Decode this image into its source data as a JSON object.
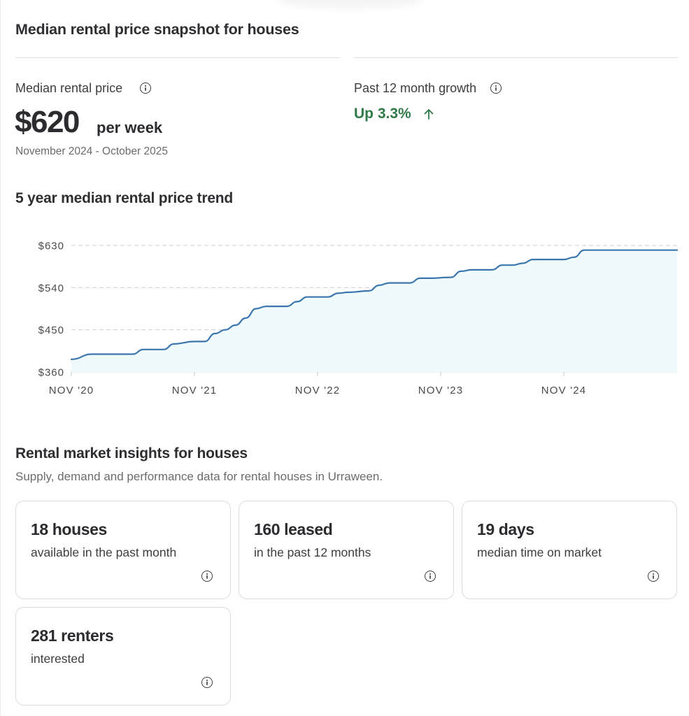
{
  "snapshot": {
    "title": "Median rental price snapshot for houses",
    "median_label": "Median rental price",
    "price": "$620",
    "price_unit": "per week",
    "period": "November 2024 - October 2025",
    "growth_label": "Past 12 month growth",
    "growth_value": "Up 3.3%",
    "growth_icon": "arrow-up-icon",
    "growth_color": "#2f7a48"
  },
  "trend": {
    "title": "5 year median rental price trend"
  },
  "chart_data": {
    "type": "area",
    "x_ticks": [
      "NOV '20",
      "NOV '21",
      "NOV '22",
      "NOV '23",
      "NOV '24"
    ],
    "y_ticks": [
      "$360",
      "$450",
      "$540",
      "$630"
    ],
    "ylim": [
      360,
      630
    ],
    "x_range": [
      "2020-11",
      "2025-10"
    ],
    "grid": "horizontal-dashed",
    "line_color": "#3b76ae",
    "fill_color": "#eefafb",
    "points": [
      {
        "x": "2020-11",
        "y": 387
      },
      {
        "x": "2021-01",
        "y": 398
      },
      {
        "x": "2021-02",
        "y": 398
      },
      {
        "x": "2021-05",
        "y": 398
      },
      {
        "x": "2021-06",
        "y": 408
      },
      {
        "x": "2021-08",
        "y": 408
      },
      {
        "x": "2021-09",
        "y": 420
      },
      {
        "x": "2021-11",
        "y": 425
      },
      {
        "x": "2021-12",
        "y": 425
      },
      {
        "x": "2022-01",
        "y": 442
      },
      {
        "x": "2022-02",
        "y": 450
      },
      {
        "x": "2022-03",
        "y": 460
      },
      {
        "x": "2022-04",
        "y": 475
      },
      {
        "x": "2022-05",
        "y": 495
      },
      {
        "x": "2022-06",
        "y": 500
      },
      {
        "x": "2022-08",
        "y": 500
      },
      {
        "x": "2022-09",
        "y": 510
      },
      {
        "x": "2022-10",
        "y": 520
      },
      {
        "x": "2022-12",
        "y": 520
      },
      {
        "x": "2023-01",
        "y": 528
      },
      {
        "x": "2023-02",
        "y": 530
      },
      {
        "x": "2023-04",
        "y": 533
      },
      {
        "x": "2023-05",
        "y": 545
      },
      {
        "x": "2023-06",
        "y": 550
      },
      {
        "x": "2023-08",
        "y": 550
      },
      {
        "x": "2023-09",
        "y": 560
      },
      {
        "x": "2023-10",
        "y": 560
      },
      {
        "x": "2023-12",
        "y": 562
      },
      {
        "x": "2024-01",
        "y": 575
      },
      {
        "x": "2024-02",
        "y": 578
      },
      {
        "x": "2024-04",
        "y": 578
      },
      {
        "x": "2024-05",
        "y": 588
      },
      {
        "x": "2024-06",
        "y": 588
      },
      {
        "x": "2024-07",
        "y": 592
      },
      {
        "x": "2024-08",
        "y": 600
      },
      {
        "x": "2024-11",
        "y": 600
      },
      {
        "x": "2024-12",
        "y": 605
      },
      {
        "x": "2025-01",
        "y": 620
      },
      {
        "x": "2025-10",
        "y": 620
      }
    ]
  },
  "insights": {
    "title": "Rental market insights for houses",
    "subtitle": "Supply, demand and performance data for rental houses in Urraween.",
    "cards": [
      {
        "value": "18 houses",
        "desc": "available in the past month"
      },
      {
        "value": "160 leased",
        "desc": "in the past 12 months"
      },
      {
        "value": "19 days",
        "desc": "median time on market"
      },
      {
        "value": "281 renters",
        "desc": "interested"
      }
    ]
  }
}
